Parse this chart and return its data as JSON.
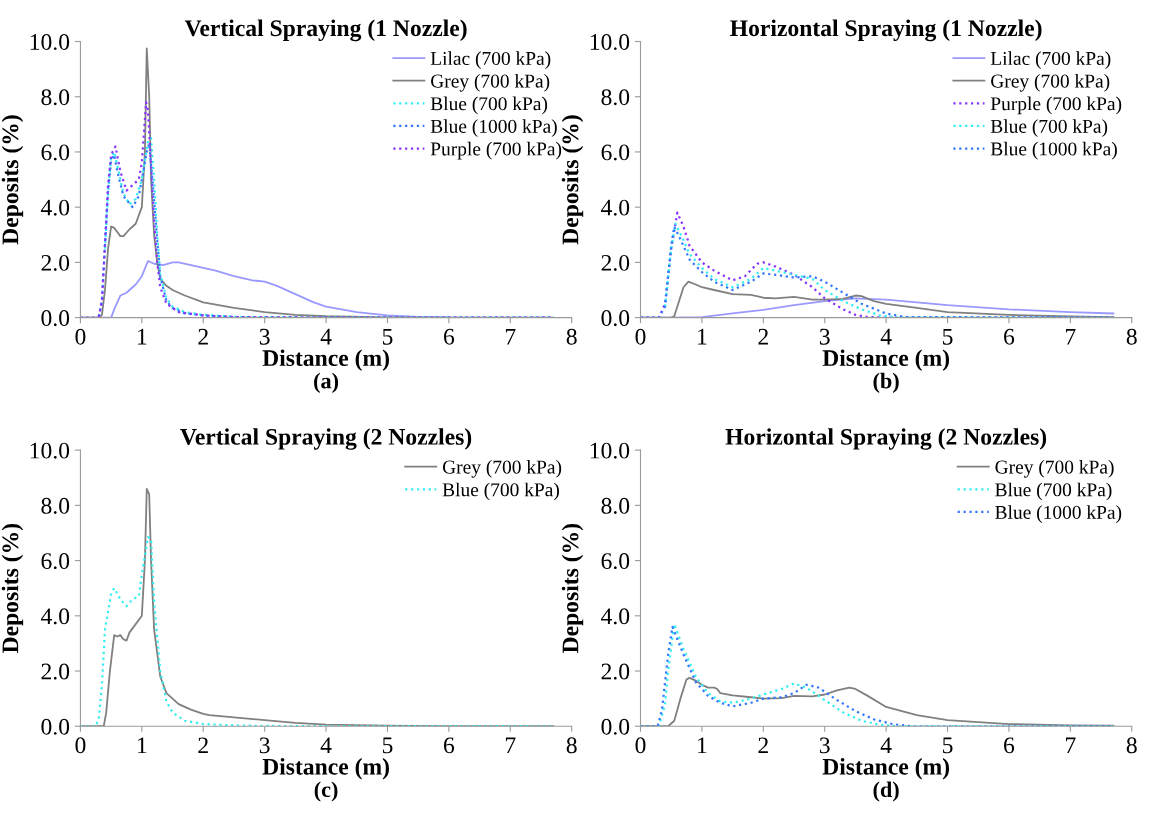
{
  "chart_data": [
    {
      "type": "line",
      "title": "Vertical Spraying (1 Nozzle)",
      "xlabel": "Distance (m)",
      "ylabel": "Deposits (%)",
      "annotations": [
        "(a)"
      ],
      "xlim": [
        0,
        8
      ],
      "xticks": [
        0,
        1,
        2,
        3,
        4,
        5,
        6,
        7,
        8
      ],
      "ylim": [
        0,
        10
      ],
      "yticks": [
        {
          "value": 0,
          "label": "0.0"
        },
        {
          "value": 2,
          "label": "2.0"
        },
        {
          "value": 4,
          "label": "4.0"
        },
        {
          "value": 6,
          "label": "6.0"
        },
        {
          "value": 8,
          "label": "8.0"
        },
        {
          "value": 10,
          "label": "10.0"
        }
      ],
      "grid": false,
      "legend": "top right",
      "series": [
        {
          "name": "Lilac (700 kPa)",
          "color": "#9999ff",
          "line_style": "solid",
          "x": [
            0,
            0.5,
            0.55,
            0.65,
            0.75,
            0.9,
            1.0,
            1.1,
            1.2,
            1.35,
            1.5,
            1.6,
            1.8,
            2.0,
            2.2,
            2.5,
            2.8,
            3.0,
            3.2,
            3.5,
            3.8,
            4.0,
            4.5,
            5.0,
            5.5,
            6
          ],
          "values": [
            0,
            0,
            0.3,
            0.8,
            0.9,
            1.2,
            1.5,
            2.05,
            1.95,
            1.9,
            2.0,
            2.0,
            1.9,
            1.8,
            1.7,
            1.5,
            1.35,
            1.3,
            1.15,
            0.85,
            0.55,
            0.4,
            0.2,
            0.08,
            0.03,
            0.01
          ]
        },
        {
          "name": "Grey (700 kPa)",
          "color": "#808080",
          "line_style": "solid",
          "x": [
            0,
            0.3,
            0.35,
            0.4,
            0.45,
            0.5,
            0.55,
            0.6,
            0.65,
            0.7,
            0.8,
            0.9,
            1.0,
            1.05,
            1.08,
            1.12,
            1.15,
            1.2,
            1.25,
            1.3,
            1.4,
            1.5,
            1.7,
            2.0,
            2.5,
            3.0,
            3.5,
            4.0,
            5.0,
            6,
            7.7
          ],
          "values": [
            0,
            0,
            0.1,
            1.0,
            2.5,
            3.3,
            3.25,
            3.1,
            2.95,
            2.95,
            3.2,
            3.4,
            4.0,
            6.0,
            9.75,
            8.0,
            5.0,
            3.0,
            2.0,
            1.4,
            1.15,
            1.0,
            0.8,
            0.55,
            0.35,
            0.2,
            0.1,
            0.05,
            0.01,
            0,
            0
          ]
        },
        {
          "name": "Blue (700 kPa)",
          "color": "#33eeee",
          "line_style": "dotted",
          "x": [
            0.4,
            0.45,
            0.5,
            0.55,
            0.6,
            0.7,
            0.8,
            0.9,
            1.0,
            1.1,
            1.15,
            1.2,
            1.25,
            1.3,
            1.4,
            1.5,
            1.7,
            2.0,
            2.5,
            3,
            4,
            7.7
          ],
          "values": [
            2.5,
            4.5,
            5.8,
            6.0,
            5.5,
            4.5,
            4.1,
            4.3,
            5.0,
            6.4,
            6.5,
            5.0,
            3.0,
            1.6,
            0.7,
            0.4,
            0.2,
            0.1,
            0.03,
            0.01,
            0,
            0
          ]
        },
        {
          "name": "Blue (1000 kPa)",
          "color": "#3377ff",
          "line_style": "dotted",
          "x": [
            0.3,
            0.35,
            0.4,
            0.45,
            0.5,
            0.55,
            0.6,
            0.7,
            0.85,
            0.95,
            1.0,
            1.08,
            1.12,
            1.18,
            1.25,
            1.3,
            1.4,
            1.5,
            1.7,
            2.0,
            2.5,
            3,
            4,
            7.7
          ],
          "values": [
            0.05,
            0.6,
            2.6,
            4.6,
            5.7,
            5.9,
            5.3,
            4.4,
            4.0,
            4.4,
            5.0,
            6.0,
            6.3,
            4.8,
            2.8,
            1.5,
            0.6,
            0.35,
            0.15,
            0.08,
            0.02,
            0.01,
            0,
            0
          ]
        },
        {
          "name": "Purple (700 kPa)",
          "color": "#8833ff",
          "line_style": "dotted",
          "x": [
            0,
            0.25,
            0.3,
            0.35,
            0.4,
            0.45,
            0.5,
            0.57,
            0.65,
            0.75,
            0.85,
            0.95,
            1.0,
            1.07,
            1.1,
            1.15,
            1.2,
            1.25,
            1.3,
            1.4,
            1.6,
            2.0,
            2.5,
            3,
            4,
            7.7
          ],
          "values": [
            0,
            0,
            0.05,
            0.6,
            2.7,
            4.8,
            5.9,
            6.2,
            5.3,
            4.6,
            4.8,
            5.0,
            5.6,
            7.8,
            7.5,
            5.5,
            3.5,
            2.0,
            1.1,
            0.5,
            0.2,
            0.08,
            0.02,
            0.01,
            0,
            0
          ]
        }
      ]
    },
    {
      "type": "line",
      "title": "Horizontal Spraying (1 Nozzle)",
      "xlabel": "Distance (m)",
      "ylabel": "Deposits (%)",
      "annotations": [
        "(b)"
      ],
      "xlim": [
        0,
        8
      ],
      "xticks": [
        0,
        1,
        2,
        3,
        4,
        5,
        6,
        7,
        8
      ],
      "ylim": [
        0,
        10
      ],
      "yticks": [
        {
          "value": 0,
          "label": "0.0"
        },
        {
          "value": 2,
          "label": "2.0"
        },
        {
          "value": 4,
          "label": "4.0"
        },
        {
          "value": 6,
          "label": "6.0"
        },
        {
          "value": 8,
          "label": "8.0"
        },
        {
          "value": 10,
          "label": "10.0"
        }
      ],
      "grid": false,
      "legend": "top right",
      "series": [
        {
          "name": "Lilac (700 kPa)",
          "color": "#9999ff",
          "line_style": "solid",
          "x": [
            0,
            0.5,
            1.0,
            1.5,
            2.0,
            2.5,
            3.0,
            3.5,
            4.0,
            4.5,
            5,
            6,
            7,
            7.7
          ],
          "values": [
            0,
            0,
            0.02,
            0.15,
            0.28,
            0.45,
            0.6,
            0.7,
            0.65,
            0.55,
            0.45,
            0.3,
            0.2,
            0.15
          ]
        },
        {
          "name": "Grey (700 kPa)",
          "color": "#808080",
          "line_style": "solid",
          "x": [
            0,
            0.5,
            0.55,
            0.6,
            0.7,
            0.78,
            0.9,
            1.0,
            1.2,
            1.5,
            1.8,
            2.0,
            2.2,
            2.5,
            2.8,
            3.0,
            3.3,
            3.5,
            3.6,
            3.8,
            4.0,
            4.5,
            5,
            6,
            7,
            7.7
          ],
          "values": [
            0,
            0,
            0.05,
            0.4,
            1.1,
            1.3,
            1.2,
            1.1,
            1.0,
            0.85,
            0.82,
            0.72,
            0.7,
            0.75,
            0.65,
            0.65,
            0.68,
            0.8,
            0.78,
            0.6,
            0.5,
            0.35,
            0.2,
            0.1,
            0.04,
            0.02
          ]
        },
        {
          "name": "Purple (700 kPa)",
          "color": "#8833ff",
          "line_style": "dotted",
          "x": [
            0,
            0.3,
            0.4,
            0.5,
            0.6,
            0.7,
            0.8,
            1.0,
            1.2,
            1.5,
            1.7,
            1.9,
            2.0,
            2.2,
            2.5,
            2.8,
            3.0,
            3.3,
            3.5,
            3.7,
            4,
            7.7
          ],
          "values": [
            0,
            0,
            0.5,
            2.5,
            3.8,
            3.3,
            2.6,
            2.0,
            1.7,
            1.35,
            1.5,
            1.95,
            2.0,
            1.85,
            1.55,
            1.1,
            0.7,
            0.3,
            0.1,
            0.02,
            0,
            0
          ]
        },
        {
          "name": "Blue (700 kPa)",
          "color": "#33eeee",
          "line_style": "dotted",
          "x": [
            0.4,
            0.5,
            0.57,
            0.7,
            0.8,
            1.0,
            1.2,
            1.5,
            1.8,
            2.0,
            2.2,
            2.5,
            2.8,
            3.0,
            3.3,
            3.6,
            3.9,
            4.2,
            7.7
          ],
          "values": [
            0.4,
            2.5,
            3.4,
            2.8,
            2.3,
            1.8,
            1.4,
            1.1,
            1.4,
            1.8,
            1.7,
            1.55,
            1.4,
            1.0,
            0.6,
            0.3,
            0.08,
            0,
            0
          ]
        },
        {
          "name": "Blue (1000 kPa)",
          "color": "#3377ff",
          "line_style": "dotted",
          "x": [
            0,
            0.3,
            0.4,
            0.5,
            0.55,
            0.7,
            0.8,
            1.0,
            1.2,
            1.5,
            1.8,
            2.0,
            2.2,
            2.5,
            2.8,
            3.0,
            3.3,
            3.6,
            4.0,
            4.3,
            7.7
          ],
          "values": [
            0,
            0,
            0.4,
            2.6,
            3.3,
            2.6,
            2.1,
            1.65,
            1.3,
            1.0,
            1.3,
            1.6,
            1.55,
            1.45,
            1.5,
            1.3,
            0.9,
            0.5,
            0.15,
            0.02,
            0
          ]
        }
      ]
    },
    {
      "type": "line",
      "title": "Vertical Spraying (2 Nozzles)",
      "xlabel": "Distance (m)",
      "ylabel": "Deposits (%)",
      "annotations": [
        "(c)"
      ],
      "xlim": [
        0,
        8
      ],
      "xticks": [
        0,
        1,
        2,
        3,
        4,
        5,
        6,
        7,
        8
      ],
      "ylim": [
        0,
        10
      ],
      "yticks": [
        {
          "value": 0,
          "label": "0.0"
        },
        {
          "value": 2,
          "label": "2.0"
        },
        {
          "value": 4,
          "label": "4.0"
        },
        {
          "value": 6,
          "label": "6.0"
        },
        {
          "value": 8,
          "label": "8.0"
        },
        {
          "value": 10,
          "label": "10.0"
        }
      ],
      "grid": false,
      "legend": "top right",
      "series": [
        {
          "name": "Grey (700 kPa)",
          "color": "#808080",
          "line_style": "solid",
          "x": [
            0,
            0.38,
            0.42,
            0.48,
            0.55,
            0.6,
            0.65,
            0.7,
            0.75,
            0.8,
            0.9,
            1.0,
            1.05,
            1.08,
            1.12,
            1.15,
            1.2,
            1.3,
            1.4,
            1.5,
            1.6,
            1.8,
            2.0,
            2.1,
            2.5,
            3.0,
            3.5,
            4,
            5,
            6,
            7.7
          ],
          "values": [
            0,
            0,
            0.5,
            2.0,
            3.3,
            3.25,
            3.3,
            3.15,
            3.1,
            3.4,
            3.7,
            4.0,
            6.0,
            8.6,
            8.4,
            6.0,
            3.5,
            1.8,
            1.2,
            1.0,
            0.8,
            0.6,
            0.45,
            0.4,
            0.32,
            0.22,
            0.12,
            0.06,
            0.02,
            0,
            0
          ]
        },
        {
          "name": "Blue (700 kPa)",
          "color": "#33eeee",
          "line_style": "dotted",
          "x": [
            0,
            0.25,
            0.3,
            0.35,
            0.4,
            0.5,
            0.55,
            0.65,
            0.75,
            0.85,
            0.95,
            1.0,
            1.1,
            1.15,
            1.2,
            1.3,
            1.4,
            1.5,
            1.7,
            2.0,
            2.5,
            3,
            7.7
          ],
          "values": [
            0,
            0,
            0.3,
            1.5,
            3.5,
            4.8,
            5.0,
            4.6,
            4.35,
            4.6,
            4.7,
            5.5,
            6.85,
            6.8,
            4.5,
            2.0,
            0.9,
            0.5,
            0.2,
            0.08,
            0.03,
            0.01,
            0
          ]
        }
      ]
    },
    {
      "type": "line",
      "title": "Horizontal Spraying (2 Nozzles)",
      "xlabel": "Distance (m)",
      "ylabel": "Deposits (%)",
      "annotations": [
        "(d)"
      ],
      "xlim": [
        0,
        8
      ],
      "xticks": [
        0,
        1,
        2,
        3,
        4,
        5,
        6,
        7,
        8
      ],
      "ylim": [
        0,
        10
      ],
      "yticks": [
        {
          "value": 0,
          "label": "0.0"
        },
        {
          "value": 2,
          "label": "2.0"
        },
        {
          "value": 4,
          "label": "4.0"
        },
        {
          "value": 6,
          "label": "6.0"
        },
        {
          "value": 8,
          "label": "8.0"
        },
        {
          "value": 10,
          "label": "10.0"
        }
      ],
      "grid": false,
      "legend": "top right",
      "series": [
        {
          "name": "Grey (700 kPa)",
          "color": "#808080",
          "line_style": "solid",
          "x": [
            0,
            0.45,
            0.55,
            0.65,
            0.75,
            0.8,
            0.9,
            1.0,
            1.1,
            1.2,
            1.25,
            1.3,
            1.5,
            1.8,
            2.0,
            2.3,
            2.5,
            2.8,
            3.0,
            3.2,
            3.4,
            3.5,
            3.7,
            4.0,
            4.5,
            5,
            6,
            7,
            7.7
          ],
          "values": [
            0,
            0,
            0.2,
            1.0,
            1.7,
            1.75,
            1.65,
            1.5,
            1.4,
            1.4,
            1.35,
            1.2,
            1.12,
            1.05,
            1.0,
            1.02,
            1.1,
            1.08,
            1.15,
            1.3,
            1.4,
            1.35,
            1.1,
            0.7,
            0.4,
            0.22,
            0.08,
            0.03,
            0.02
          ]
        },
        {
          "name": "Blue (700 kPa)",
          "color": "#33eeee",
          "line_style": "dotted",
          "x": [
            0,
            0.3,
            0.4,
            0.45,
            0.55,
            0.7,
            0.9,
            1.1,
            1.3,
            1.5,
            1.8,
            2.0,
            2.3,
            2.5,
            2.7,
            3.0,
            3.3,
            3.6,
            3.9,
            4.2,
            7.7
          ],
          "values": [
            0,
            0,
            0.8,
            2.0,
            3.7,
            2.8,
            1.8,
            1.2,
            0.9,
            0.85,
            1.0,
            1.15,
            1.35,
            1.55,
            1.4,
            0.95,
            0.5,
            0.2,
            0.05,
            0,
            0
          ]
        },
        {
          "name": "Blue (1000 kPa)",
          "color": "#3377ff",
          "line_style": "dotted",
          "x": [
            0,
            0.28,
            0.35,
            0.45,
            0.52,
            0.7,
            0.9,
            1.1,
            1.3,
            1.5,
            1.8,
            2.0,
            2.3,
            2.5,
            2.7,
            2.9,
            3.2,
            3.5,
            3.8,
            4.1,
            4.4,
            7.7
          ],
          "values": [
            0,
            0,
            0.6,
            2.6,
            3.6,
            2.6,
            1.6,
            1.1,
            0.85,
            0.72,
            0.85,
            1.0,
            1.05,
            1.2,
            1.5,
            1.4,
            0.95,
            0.55,
            0.25,
            0.08,
            0,
            0
          ]
        }
      ]
    }
  ]
}
